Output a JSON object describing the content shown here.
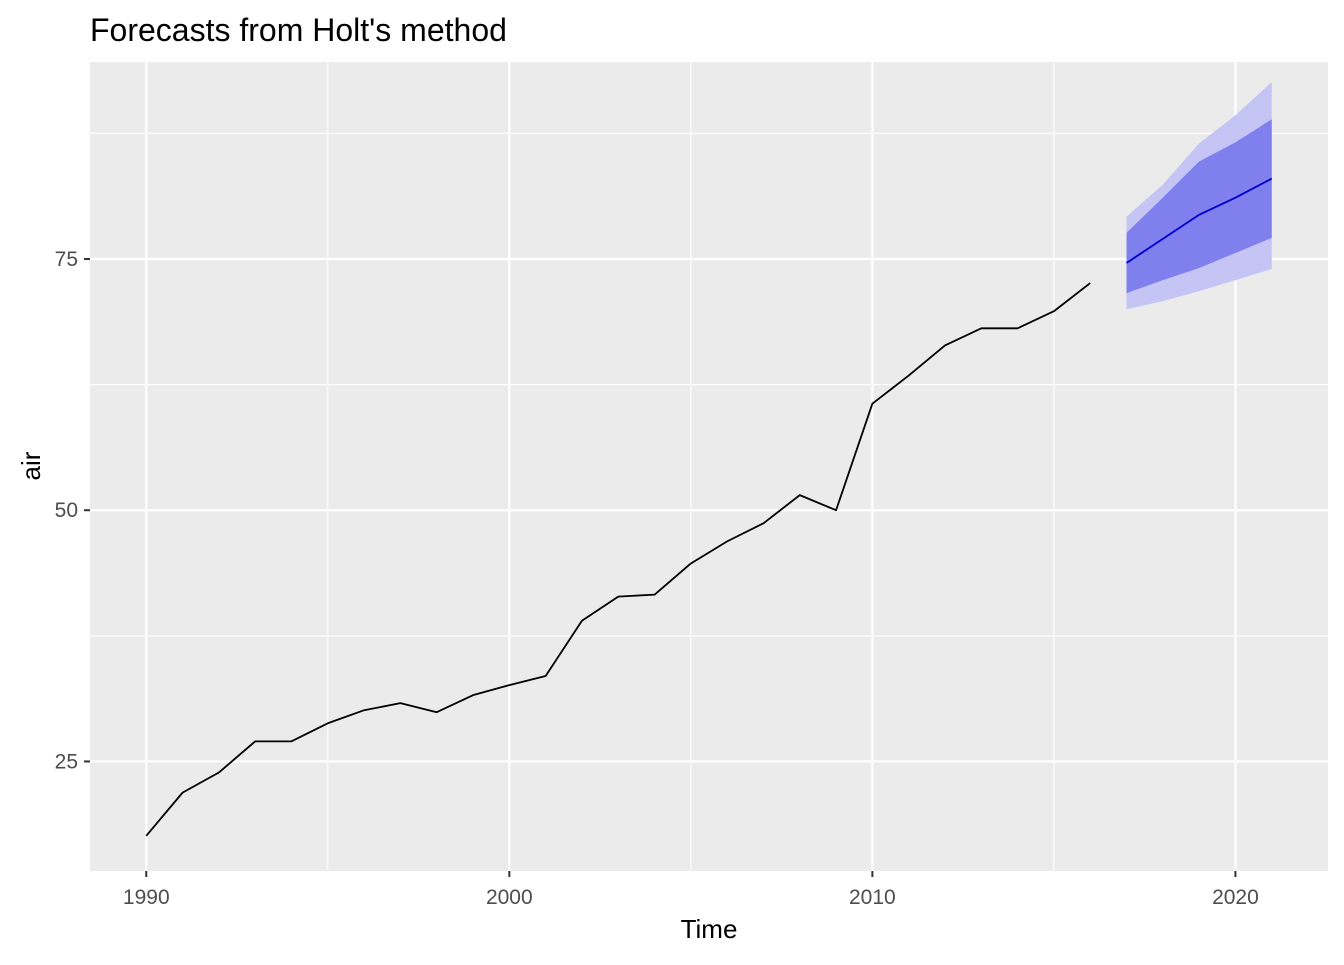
{
  "chart_data": {
    "type": "line",
    "title": "Forecasts from Holt's method",
    "xlabel": "Time",
    "ylabel": "air",
    "xlim": [
      1988.45,
      2022.55
    ],
    "ylim": [
      14.1,
      94.6
    ],
    "x_ticks": [
      1990,
      2000,
      2010,
      2020
    ],
    "x_tick_labels": [
      "1990",
      "2000",
      "2010",
      "2020"
    ],
    "y_ticks": [
      25,
      50,
      75
    ],
    "y_tick_labels": [
      "25",
      "50",
      "75"
    ],
    "y_minor_ticks": [
      37.5,
      62.5,
      87.5
    ],
    "x_minor_ticks": [
      1995,
      2005,
      2015
    ],
    "grid": true,
    "legend": "none",
    "series": [
      {
        "role": "observed",
        "color": "#000000",
        "x": [
          1990,
          1991,
          1992,
          1993,
          1994,
          1995,
          1996,
          1997,
          1998,
          1999,
          2000,
          2001,
          2002,
          2003,
          2004,
          2005,
          2006,
          2007,
          2008,
          2009,
          2010,
          2011,
          2012,
          2013,
          2014,
          2015,
          2016
        ],
        "y": [
          17.6,
          21.9,
          23.9,
          27.0,
          27.0,
          28.8,
          30.1,
          30.8,
          29.9,
          31.6,
          32.6,
          33.5,
          39.0,
          41.4,
          41.6,
          44.7,
          46.9,
          48.7,
          51.5,
          50.0,
          60.6,
          63.4,
          66.4,
          68.1,
          68.1,
          69.8,
          72.6
        ]
      },
      {
        "role": "forecast",
        "color": "#0000cc",
        "x": [
          2017,
          2018,
          2019,
          2020,
          2021
        ],
        "y": [
          74.6,
          77.0,
          79.4,
          81.1,
          83.0
        ],
        "lo80": [
          71.6,
          72.9,
          74.1,
          75.6,
          77.1
        ],
        "hi80": [
          77.6,
          81.1,
          84.7,
          86.6,
          88.9
        ],
        "lo95": [
          70.0,
          70.8,
          71.8,
          72.9,
          74.0
        ],
        "hi95": [
          79.2,
          82.4,
          86.5,
          89.3,
          92.6
        ],
        "band80_color": "#7f7fee",
        "band95_color": "#c4c4f5"
      }
    ]
  }
}
